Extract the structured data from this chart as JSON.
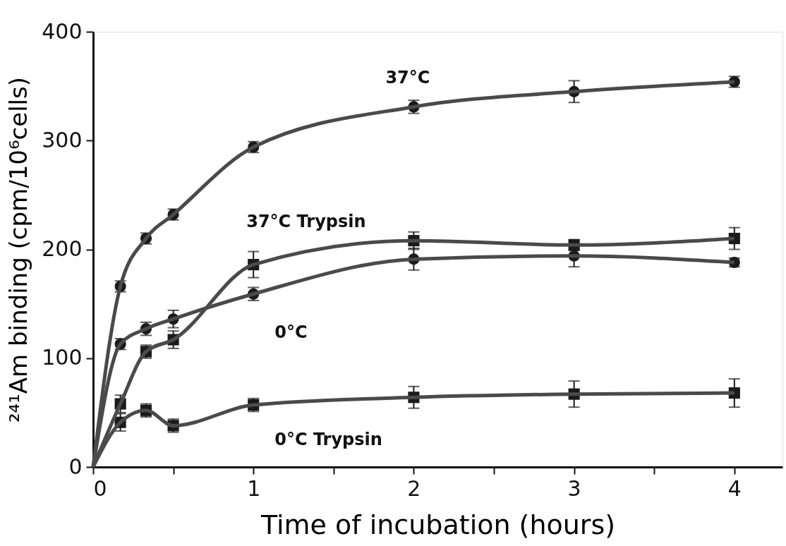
{
  "chart_data": {
    "type": "line",
    "xlabel": "Time of incubation (hours)",
    "ylabel": "²⁴¹Am binding (cpm/10⁶cells)",
    "xlim": [
      0,
      4.3
    ],
    "ylim": [
      0,
      400
    ],
    "xticks": [
      0,
      {
        "value": 0.5,
        "label": null
      },
      1,
      {
        "value": 1.5,
        "label": null
      },
      2,
      {
        "value": 2.5,
        "label": null
      },
      3,
      {
        "value": 3.5,
        "label": null
      },
      4
    ],
    "yticks": [
      0,
      100,
      200,
      300,
      400
    ],
    "grid": false,
    "series": [
      {
        "type": "scatter",
        "name": "37°C",
        "marker": "circle",
        "color": "#1a1a1a",
        "x": [
          0.17,
          0.33,
          0.5,
          1,
          2,
          3,
          4
        ],
        "values": [
          166,
          210,
          232,
          294,
          331,
          345,
          354
        ],
        "errors": [
          5,
          5,
          5,
          5,
          6,
          10,
          5
        ]
      },
      {
        "type": "scatter",
        "name": "37°C Trypsin",
        "marker": "square",
        "color": "#1a1a1a",
        "x": [
          0.17,
          0.33,
          0.5,
          1,
          2,
          3,
          4
        ],
        "values": [
          58,
          106,
          117,
          186,
          208,
          204,
          210
        ],
        "errors": [
          8,
          6,
          8,
          12,
          8,
          5,
          10
        ]
      },
      {
        "type": "scatter",
        "name": "0°C",
        "marker": "circle",
        "color": "#1a1a1a",
        "x": [
          0.17,
          0.33,
          0.5,
          1,
          2,
          3,
          4
        ],
        "values": [
          113,
          127,
          136,
          159,
          191,
          194,
          188
        ],
        "errors": [
          5,
          6,
          8,
          6,
          10,
          10,
          4
        ]
      },
      {
        "type": "scatter",
        "name": "0°C Trypsin",
        "marker": "square",
        "color": "#1a1a1a",
        "x": [
          0.17,
          0.33,
          0.5,
          1,
          2,
          3,
          4
        ],
        "values": [
          41,
          52,
          38,
          57,
          64,
          67,
          68
        ],
        "errors": [
          8,
          6,
          6,
          6,
          10,
          12,
          13
        ]
      },
      {
        "color": "#4a4a4a",
        "x": [
          0,
          0.17,
          0.33,
          0.5,
          1,
          2,
          3,
          4
        ],
        "values": [
          0,
          166,
          210,
          232,
          294,
          331,
          345,
          354
        ]
      },
      {
        "color": "#4a4a4a",
        "x": [
          0,
          0.17,
          0.33,
          0.5,
          1,
          2,
          3,
          4
        ],
        "values": [
          0,
          58,
          106,
          117,
          186,
          208,
          204,
          210
        ]
      },
      {
        "color": "#4a4a4a",
        "x": [
          0,
          0.17,
          0.33,
          0.5,
          1,
          2,
          3,
          4
        ],
        "values": [
          0,
          113,
          127,
          136,
          159,
          191,
          194,
          188
        ]
      },
      {
        "color": "#4a4a4a",
        "x": [
          0,
          0.17,
          0.33,
          0.5,
          1,
          2,
          3,
          4
        ],
        "values": [
          0,
          41,
          52,
          38,
          57,
          64,
          67,
          68
        ]
      }
    ]
  }
}
